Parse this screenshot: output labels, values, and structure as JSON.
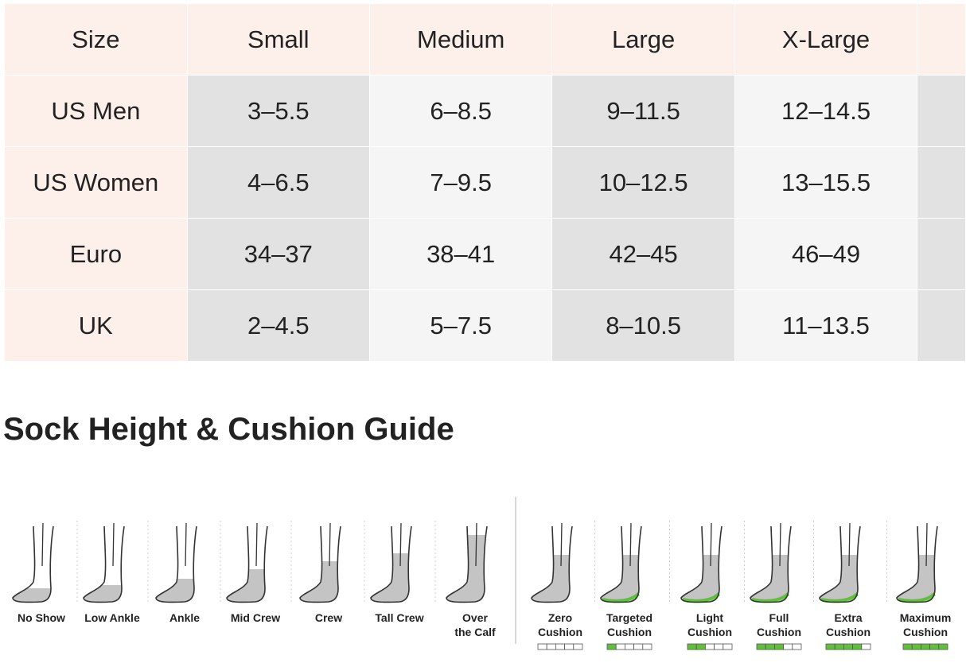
{
  "table": {
    "header": [
      "Size",
      "Small",
      "Medium",
      "Large",
      "X-Large"
    ],
    "rows": [
      [
        "US Men",
        "3–5.5",
        "6–8.5",
        "9–11.5",
        "12–14.5"
      ],
      [
        "US Women",
        "4–6.5",
        "7–9.5",
        "10–12.5",
        "13–15.5"
      ],
      [
        "Euro",
        "34–37",
        "38–41",
        "42–45",
        "46–49"
      ],
      [
        "UK",
        "2–4.5",
        "5–7.5",
        "8–10.5",
        "11–13.5"
      ]
    ]
  },
  "guide": {
    "title": "Sock Height & Cushion Guide",
    "heights": [
      [
        "No Show"
      ],
      [
        "Low Ankle"
      ],
      [
        "Ankle"
      ],
      [
        "Mid Crew"
      ],
      [
        "Crew"
      ],
      [
        "Tall Crew"
      ],
      [
        "Over",
        "the Calf"
      ]
    ],
    "cushions": [
      [
        "Zero",
        "Cushion"
      ],
      [
        "Targeted",
        "Cushion"
      ],
      [
        "Light",
        "Cushion"
      ],
      [
        "Full",
        "Cushion"
      ],
      [
        "Extra",
        "Cushion"
      ],
      [
        "Maximum",
        "Cushion"
      ]
    ]
  }
}
